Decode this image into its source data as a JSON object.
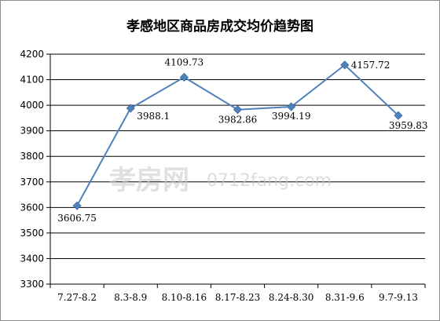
{
  "chart_data": {
    "type": "line",
    "title": "孝感地区商品房成交均价趋势图",
    "categories": [
      "7.27-8.2",
      "8.3-8.9",
      "8.10-8.16",
      "8.17-8.23",
      "8.24-8.30",
      "8.31-9.6",
      "9.7-9.13"
    ],
    "category_labels": [
      "7.27-8.2",
      "8.3-8.9",
      "8.10-8.16",
      "8.17-8.23",
      "8.24-8.30",
      "8.31-9.6",
      "9.7-9.13"
    ],
    "series": [
      {
        "values": [
          3606.75,
          3988.1,
          4109.73,
          3982.86,
          3994.19,
          4157.72,
          3959.83
        ],
        "labels": [
          "3606.75",
          "3988.1",
          "4109.73",
          "3982.86",
          "3994.19",
          "4157.72",
          "3959.83"
        ],
        "color": "#4f81bd",
        "marker": "diamond"
      }
    ],
    "ylim": [
      3300,
      4200
    ],
    "yticks": [
      3300,
      3400,
      3500,
      3600,
      3700,
      3800,
      3900,
      4000,
      4100,
      4200
    ],
    "ytick_labels": [
      "3300",
      "3400",
      "3500",
      "3600",
      "3700",
      "3800",
      "3900",
      "4000",
      "4100",
      "4200"
    ],
    "grid": true,
    "legend": "none"
  },
  "watermark": {
    "logo_text": "孝房网",
    "site_text": "0712fang.com"
  }
}
